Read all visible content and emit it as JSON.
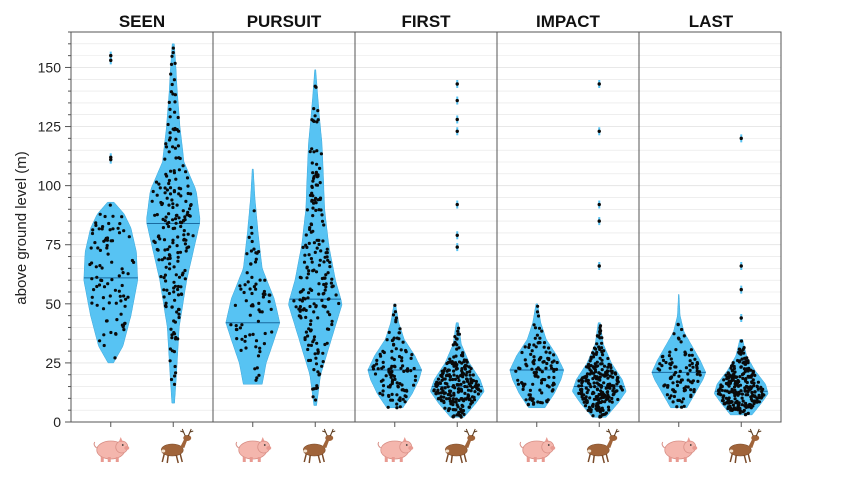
{
  "chart_data": {
    "type": "violin-beeswarm",
    "ylabel": "above ground level (m)",
    "ylim": [
      0,
      165
    ],
    "yticks": [
      0,
      25,
      50,
      75,
      100,
      125,
      150
    ],
    "grid": true,
    "legend": "none",
    "icons": {
      "pig": "pig-icon",
      "deer": "deer-icon"
    },
    "colors": {
      "violin": "#57c3f3",
      "points": "#0a0a0a",
      "median": "#1a6aa0",
      "axis": "#555555",
      "grid": "#e4e4e4"
    },
    "panels": [
      {
        "title": "SEEN",
        "series": [
          {
            "icon": "pig-icon",
            "min": 25,
            "max": 93,
            "median": 61,
            "n": 90,
            "outliers": [
              155,
              153,
              112,
              111
            ],
            "profile": [
              [
                25,
                0.1
              ],
              [
                32,
                0.45
              ],
              [
                45,
                0.75
              ],
              [
                60,
                1.0
              ],
              [
                72,
                0.95
              ],
              [
                82,
                0.75
              ],
              [
                88,
                0.5
              ],
              [
                93,
                0.12
              ]
            ]
          },
          {
            "icon": "deer-icon",
            "min": 8,
            "max": 160,
            "median": 84,
            "n": 210,
            "profile": [
              [
                8,
                0.05
              ],
              [
                20,
                0.12
              ],
              [
                40,
                0.22
              ],
              [
                60,
                0.5
              ],
              [
                75,
                0.8
              ],
              [
                85,
                1.0
              ],
              [
                98,
                0.85
              ],
              [
                110,
                0.4
              ],
              [
                125,
                0.25
              ],
              [
                140,
                0.15
              ],
              [
                150,
                0.1
              ],
              [
                160,
                0.04
              ]
            ]
          }
        ]
      },
      {
        "title": "PURSUIT",
        "series": [
          {
            "icon": "pig-icon",
            "min": 16,
            "max": 107,
            "median": 42,
            "n": 75,
            "profile": [
              [
                16,
                0.35
              ],
              [
                25,
                0.5
              ],
              [
                35,
                0.8
              ],
              [
                42,
                1.0
              ],
              [
                52,
                0.8
              ],
              [
                65,
                0.35
              ],
              [
                80,
                0.2
              ],
              [
                95,
                0.08
              ],
              [
                107,
                0.02
              ]
            ]
          },
          {
            "icon": "deer-icon",
            "min": 7,
            "max": 149,
            "median": 52,
            "n": 200,
            "profile": [
              [
                7,
                0.05
              ],
              [
                20,
                0.2
              ],
              [
                35,
                0.6
              ],
              [
                50,
                1.0
              ],
              [
                60,
                0.75
              ],
              [
                75,
                0.5
              ],
              [
                90,
                0.35
              ],
              [
                105,
                0.3
              ],
              [
                118,
                0.25
              ],
              [
                130,
                0.15
              ],
              [
                140,
                0.08
              ],
              [
                149,
                0.02
              ]
            ]
          }
        ]
      },
      {
        "title": "FIRST",
        "series": [
          {
            "icon": "pig-icon",
            "min": 6,
            "max": 50,
            "median": 22,
            "n": 110,
            "profile": [
              [
                6,
                0.3
              ],
              [
                12,
                0.65
              ],
              [
                18,
                0.9
              ],
              [
                22,
                1.0
              ],
              [
                28,
                0.75
              ],
              [
                35,
                0.35
              ],
              [
                42,
                0.15
              ],
              [
                50,
                0.03
              ]
            ]
          },
          {
            "icon": "deer-icon",
            "min": 2,
            "max": 42,
            "median": 15,
            "n": 230,
            "outliers": [
              143,
              136,
              128,
              123,
              92,
              79,
              74
            ],
            "profile": [
              [
                2,
                0.25
              ],
              [
                8,
                0.7
              ],
              [
                13,
                1.0
              ],
              [
                18,
                0.85
              ],
              [
                25,
                0.45
              ],
              [
                33,
                0.15
              ],
              [
                42,
                0.04
              ]
            ]
          }
        ]
      },
      {
        "title": "IMPACT",
        "series": [
          {
            "icon": "pig-icon",
            "min": 6,
            "max": 50,
            "median": 22,
            "n": 110,
            "profile": [
              [
                6,
                0.3
              ],
              [
                12,
                0.65
              ],
              [
                18,
                0.9
              ],
              [
                22,
                1.0
              ],
              [
                28,
                0.75
              ],
              [
                35,
                0.35
              ],
              [
                42,
                0.15
              ],
              [
                50,
                0.03
              ]
            ]
          },
          {
            "icon": "deer-icon",
            "min": 2,
            "max": 42,
            "median": 15,
            "n": 250,
            "outliers": [
              143,
              123,
              92,
              85,
              66
            ],
            "profile": [
              [
                2,
                0.25
              ],
              [
                8,
                0.7
              ],
              [
                13,
                1.0
              ],
              [
                18,
                0.85
              ],
              [
                25,
                0.45
              ],
              [
                33,
                0.15
              ],
              [
                42,
                0.04
              ]
            ]
          }
        ]
      },
      {
        "title": "LAST",
        "series": [
          {
            "icon": "pig-icon",
            "min": 6,
            "max": 54,
            "median": 21,
            "n": 100,
            "profile": [
              [
                6,
                0.3
              ],
              [
                12,
                0.6
              ],
              [
                18,
                0.9
              ],
              [
                21,
                1.0
              ],
              [
                26,
                0.8
              ],
              [
                33,
                0.45
              ],
              [
                38,
                0.2
              ],
              [
                45,
                0.05
              ],
              [
                54,
                0.01
              ]
            ]
          },
          {
            "icon": "deer-icon",
            "min": 3,
            "max": 35,
            "median": 13,
            "n": 240,
            "outliers": [
              120,
              66,
              56,
              44
            ],
            "profile": [
              [
                3,
                0.4
              ],
              [
                8,
                0.75
              ],
              [
                12,
                1.0
              ],
              [
                16,
                0.9
              ],
              [
                22,
                0.5
              ],
              [
                28,
                0.2
              ],
              [
                35,
                0.05
              ]
            ]
          }
        ]
      }
    ]
  }
}
